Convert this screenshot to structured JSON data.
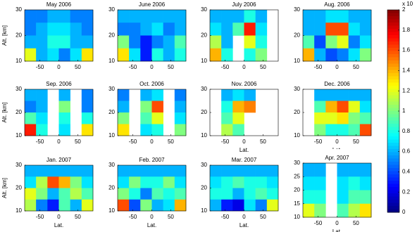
{
  "chart_data": [
    {
      "type": "heatmap",
      "title": "May 2006",
      "ylabel": "Alt. [km]",
      "xlim": [
        -90,
        90
      ],
      "ylim": [
        10,
        30
      ],
      "xticks": [
        -50,
        0,
        50
      ],
      "yticks": [
        10,
        20,
        30
      ],
      "values": [
        [
          0.5,
          0.5,
          0.6,
          0.6,
          0.5,
          0.5
        ],
        [
          0.5,
          0.6,
          0.7,
          0.7,
          0.6,
          0.5
        ],
        [
          0.6,
          0.6,
          0.8,
          0.8,
          0.6,
          0.6
        ],
        [
          1.2,
          0.6,
          0.7,
          0.5,
          0.7,
          1.3
        ]
      ]
    },
    {
      "type": "heatmap",
      "title": "June 2006",
      "xlim": [
        -90,
        90
      ],
      "ylim": [
        10,
        30
      ],
      "xticks": [
        -50,
        0,
        50
      ],
      "yticks": [
        10,
        20,
        30
      ],
      "values": [
        [
          0.6,
          0.6,
          0.6,
          0.6,
          0.6,
          0.6
        ],
        [
          0.5,
          0.5,
          0.6,
          0.7,
          0.5,
          0.6
        ],
        [
          1.0,
          0.5,
          0.3,
          0.5,
          0.6,
          0.9
        ],
        [
          1.3,
          0.7,
          0.3,
          0.8,
          0.6,
          0.8
        ]
      ]
    },
    {
      "type": "heatmap",
      "title": "July 2006",
      "xlim": [
        -90,
        90
      ],
      "ylim": [
        10,
        30
      ],
      "xticks": [
        -50,
        0,
        50
      ],
      "yticks": [
        10,
        20,
        30
      ],
      "values": [
        [
          0.6,
          0.6,
          0.6,
          0.8,
          0.6,
          null
        ],
        [
          0.7,
          0.6,
          0.9,
          1.7,
          0.7,
          null
        ],
        [
          1.1,
          0.6,
          null,
          1.2,
          0.8,
          null
        ],
        [
          1.4,
          0.8,
          null,
          0.8,
          1.0,
          null
        ]
      ]
    },
    {
      "type": "heatmap",
      "title": "Aug. 2006",
      "xlim": [
        -90,
        90
      ],
      "ylim": [
        10,
        30
      ],
      "xticks": [
        -50,
        0,
        50
      ],
      "yticks": [
        10,
        20,
        30
      ],
      "values": [
        [
          0.6,
          0.6,
          0.7,
          0.7,
          0.6,
          0.6
        ],
        [
          0.6,
          0.6,
          1.6,
          1.6,
          0.7,
          0.6
        ],
        [
          0.9,
          0.4,
          1.0,
          1.2,
          0.5,
          0.7
        ],
        [
          1.4,
          0.6,
          0.4,
          0.5,
          0.7,
          1.0
        ]
      ]
    },
    {
      "type": "heatmap",
      "title": "Sep. 2006",
      "ylabel": "Alt. [km]",
      "xlim": [
        -90,
        90
      ],
      "ylim": [
        10,
        30
      ],
      "xticks": [
        -50,
        0,
        50
      ],
      "yticks": [
        10,
        20,
        30
      ],
      "values": [
        [
          0.6,
          0.6,
          null,
          0.6,
          null,
          0.5
        ],
        [
          0.5,
          0.6,
          null,
          1.0,
          null,
          0.5
        ],
        [
          0.9,
          0.7,
          null,
          0.8,
          null,
          0.8
        ],
        [
          1.7,
          0.8,
          null,
          0.7,
          null,
          1.3
        ]
      ]
    },
    {
      "type": "heatmap",
      "title": "Oct. 2006",
      "xlim": [
        -90,
        90
      ],
      "ylim": [
        10,
        30
      ],
      "xticks": [
        -50,
        0,
        50
      ],
      "yticks": [
        10,
        20,
        30
      ],
      "values": [
        [
          0.5,
          null,
          0.6,
          0.7,
          null,
          0.5
        ],
        [
          0.6,
          null,
          1.0,
          1.6,
          null,
          0.6
        ],
        [
          1.0,
          null,
          0.9,
          1.2,
          null,
          0.7
        ],
        [
          1.3,
          null,
          0.7,
          0.8,
          null,
          1.0
        ]
      ]
    },
    {
      "type": "heatmap",
      "title": "Nov. 2006",
      "xlabel": "Lat.",
      "xlim": [
        -90,
        90
      ],
      "ylim": [
        10,
        30
      ],
      "xticks": [
        -50,
        0,
        50
      ],
      "yticks": [
        10,
        20,
        30
      ],
      "values": [
        [
          null,
          0.6,
          0.7,
          0.6,
          null,
          null
        ],
        [
          null,
          0.8,
          1.4,
          1.5,
          null,
          null
        ],
        [
          null,
          0.9,
          1.2,
          null,
          null,
          null
        ],
        [
          null,
          1.1,
          0.9,
          null,
          null,
          null
        ]
      ]
    },
    {
      "type": "heatmap",
      "title": "Dec. 2006",
      "xlabel": "Lat.",
      "xlim": [
        -90,
        90
      ],
      "ylim": [
        10,
        30
      ],
      "xticks": [
        -50,
        0,
        50
      ],
      "yticks": [
        10,
        20,
        30
      ],
      "values": [
        [
          null,
          0.6,
          0.6,
          0.6,
          0.6,
          0.6
        ],
        [
          null,
          0.9,
          1.4,
          1.6,
          1.2,
          0.7
        ],
        [
          null,
          1.2,
          1.2,
          1.3,
          1.0,
          0.9
        ],
        [
          null,
          1.0,
          0.8,
          0.8,
          0.9,
          1.6
        ]
      ]
    },
    {
      "type": "heatmap",
      "title": "Jan. 2007",
      "ylabel": "Alt. [km]",
      "xlabel": "Lat.",
      "xlim": [
        -90,
        90
      ],
      "ylim": [
        10,
        30
      ],
      "xticks": [
        -50,
        0,
        50
      ],
      "yticks": [
        10,
        20,
        30
      ],
      "values": [
        [
          0.6,
          0.6,
          0.6,
          0.6,
          0.6,
          0.6
        ],
        [
          0.7,
          1.1,
          1.6,
          1.4,
          1.0,
          0.7
        ],
        [
          1.2,
          1.0,
          0.6,
          0.9,
          1.1,
          0.9
        ],
        [
          1.1,
          0.5,
          0.3,
          0.9,
          0.6,
          1.2
        ]
      ]
    },
    {
      "type": "heatmap",
      "title": "Feb. 2007",
      "xlabel": "Lat.",
      "xlim": [
        -90,
        90
      ],
      "ylim": [
        10,
        30
      ],
      "xticks": [
        -50,
        0,
        50
      ],
      "yticks": [
        10,
        20,
        30
      ],
      "values": [
        [
          0.6,
          0.6,
          0.6,
          0.6,
          0.6,
          0.6
        ],
        [
          0.7,
          1.0,
          0.8,
          0.8,
          1.0,
          0.7
        ],
        [
          1.0,
          0.8,
          0.5,
          0.9,
          0.8,
          0.9
        ],
        [
          1.6,
          0.4,
          1.0,
          0.6,
          0.7,
          1.4
        ]
      ]
    },
    {
      "type": "heatmap",
      "title": "Mar. 2007",
      "xlabel": "Lat.",
      "xlim": [
        -90,
        90
      ],
      "ylim": [
        10,
        30
      ],
      "xticks": [
        -50,
        0,
        50
      ],
      "yticks": [
        10,
        20,
        30
      ],
      "values": [
        [
          0.6,
          0.6,
          0.6,
          0.6,
          0.6,
          0.6
        ],
        [
          0.7,
          0.8,
          0.9,
          0.8,
          0.8,
          0.7
        ],
        [
          0.8,
          0.8,
          0.6,
          0.8,
          0.9,
          0.8
        ],
        [
          0.6,
          0.3,
          0.2,
          0.7,
          0.5,
          1.2
        ]
      ]
    },
    {
      "type": "heatmap",
      "title": "Apr. 2007",
      "xlabel": "Lat.",
      "xlim": [
        -90,
        90
      ],
      "ylim": [
        10,
        30
      ],
      "xticks": [
        -50,
        0,
        50
      ],
      "yticks": [
        10,
        15,
        20,
        25,
        30
      ],
      "values": [
        [
          0.6,
          0.6,
          null,
          0.6,
          0.6,
          0.6
        ],
        [
          0.7,
          0.7,
          null,
          0.7,
          0.8,
          0.7
        ],
        [
          0.8,
          0.8,
          null,
          0.7,
          0.9,
          0.9
        ],
        [
          1.2,
          1.0,
          null,
          0.9,
          1.1,
          1.3
        ]
      ]
    }
  ],
  "colorbar": {
    "lim": [
      0,
      2
    ],
    "ticks": [
      0,
      0.2,
      0.4,
      0.6,
      0.8,
      1,
      1.2,
      1.4,
      1.6,
      1.8,
      2
    ],
    "label": "x 10"
  }
}
